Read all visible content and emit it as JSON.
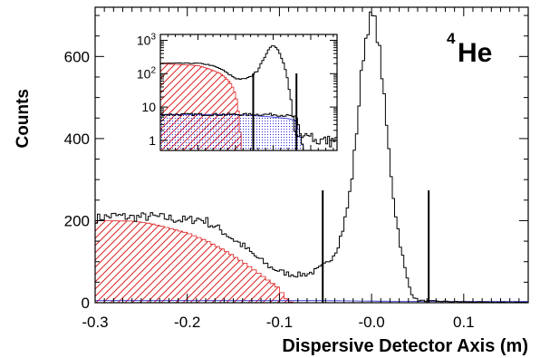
{
  "chart_data": {
    "type": "histogram",
    "annotation": {
      "superscript": "4",
      "text": "He"
    },
    "xlabel": "Dispersive Detector Axis (m)",
    "ylabel": "Counts",
    "xlim": [
      -0.3,
      0.17
    ],
    "ylim": [
      0,
      720
    ],
    "x_ticks": [
      -0.3,
      -0.2,
      -0.1,
      -0.0,
      0.1
    ],
    "x_tick_labels": [
      "-0.3",
      "-0.2",
      "-0.1",
      "-0.0",
      "0.1"
    ],
    "y_ticks": [
      0,
      200,
      400,
      600
    ],
    "y_tick_labels": [
      "0",
      "200",
      "400",
      "600"
    ],
    "cut_lines_x": [
      -0.053,
      0.062
    ],
    "series": [
      {
        "style": "black step line",
        "bin_width": 0.005,
        "points": [
          [
            -0.3,
            205
          ],
          [
            -0.28,
            212
          ],
          [
            -0.26,
            208
          ],
          [
            -0.24,
            210
          ],
          [
            -0.22,
            206
          ],
          [
            -0.2,
            200
          ],
          [
            -0.19,
            205
          ],
          [
            -0.18,
            200
          ],
          [
            -0.17,
            185
          ],
          [
            -0.16,
            172
          ],
          [
            -0.15,
            155
          ],
          [
            -0.14,
            140
          ],
          [
            -0.13,
            120
          ],
          [
            -0.12,
            103
          ],
          [
            -0.11,
            87
          ],
          [
            -0.1,
            77
          ],
          [
            -0.09,
            70
          ],
          [
            -0.08,
            68
          ],
          [
            -0.07,
            70
          ],
          [
            -0.06,
            78
          ],
          [
            -0.05,
            92
          ],
          [
            -0.04,
            122
          ],
          [
            -0.035,
            150
          ],
          [
            -0.03,
            190
          ],
          [
            -0.025,
            245
          ],
          [
            -0.02,
            330
          ],
          [
            -0.015,
            450
          ],
          [
            -0.01,
            585
          ],
          [
            -0.005,
            665
          ],
          [
            0.0,
            700
          ],
          [
            0.005,
            675
          ],
          [
            0.01,
            590
          ],
          [
            0.015,
            460
          ],
          [
            0.02,
            340
          ],
          [
            0.025,
            235
          ],
          [
            0.03,
            160
          ],
          [
            0.035,
            95
          ],
          [
            0.04,
            45
          ],
          [
            0.045,
            16
          ],
          [
            0.05,
            6
          ],
          [
            0.06,
            4
          ],
          [
            0.08,
            3
          ],
          [
            0.1,
            2
          ],
          [
            0.13,
            1
          ],
          [
            0.17,
            1
          ]
        ]
      },
      {
        "style": "red hatched fill",
        "bin_width": 0.005,
        "points": [
          [
            -0.3,
            200
          ],
          [
            -0.26,
            199
          ],
          [
            -0.24,
            193
          ],
          [
            -0.22,
            182
          ],
          [
            -0.2,
            170
          ],
          [
            -0.18,
            152
          ],
          [
            -0.16,
            128
          ],
          [
            -0.14,
            100
          ],
          [
            -0.12,
            68
          ],
          [
            -0.1,
            34
          ],
          [
            -0.095,
            15
          ],
          [
            -0.09,
            4
          ],
          [
            -0.085,
            0
          ]
        ]
      },
      {
        "style": "blue dotted fill",
        "bin_width": 0.005,
        "points": [
          [
            -0.3,
            5
          ],
          [
            -0.2,
            5
          ],
          [
            -0.1,
            5
          ],
          [
            -0.05,
            5
          ],
          [
            0.0,
            4
          ],
          [
            0.05,
            3
          ],
          [
            0.1,
            3
          ],
          [
            0.17,
            3
          ]
        ]
      }
    ],
    "inset": {
      "yscale": "log",
      "ylim": [
        0.5,
        1500
      ],
      "y_ticks": [
        1,
        10,
        100,
        1000
      ],
      "y_tick_labels": [
        {
          "base": "1",
          "exp": ""
        },
        {
          "base": "10",
          "exp": ""
        },
        {
          "base": "10",
          "exp": "2"
        },
        {
          "base": "10",
          "exp": "3"
        }
      ],
      "xlim": [
        -0.3,
        0.17
      ],
      "cut_lines_x": [
        -0.053,
        0.062
      ],
      "series": [
        {
          "style": "black step line",
          "points": [
            [
              -0.3,
              205
            ],
            [
              -0.2,
              205
            ],
            [
              -0.17,
              185
            ],
            [
              -0.14,
              140
            ],
            [
              -0.12,
              100
            ],
            [
              -0.1,
              72
            ],
            [
              -0.08,
              68
            ],
            [
              -0.06,
              80
            ],
            [
              -0.04,
              125
            ],
            [
              -0.02,
              330
            ],
            [
              -0.01,
              590
            ],
            [
              0.0,
              700
            ],
            [
              0.01,
              590
            ],
            [
              0.02,
              340
            ],
            [
              0.03,
              160
            ],
            [
              0.04,
              45
            ],
            [
              0.05,
              8
            ],
            [
              0.055,
              1.5
            ],
            [
              0.08,
              1
            ],
            [
              0.095,
              2
            ],
            [
              0.11,
              1
            ],
            [
              0.14,
              1
            ],
            [
              0.17,
              1
            ]
          ]
        },
        {
          "style": "red hatched fill",
          "points": [
            [
              -0.3,
              200
            ],
            [
              -0.2,
              175
            ],
            [
              -0.14,
              100
            ],
            [
              -0.11,
              45
            ],
            [
              -0.095,
              12
            ],
            [
              -0.09,
              3
            ],
            [
              -0.085,
              0.5
            ]
          ]
        },
        {
          "style": "blue dotted fill",
          "points": [
            [
              -0.3,
              6
            ],
            [
              -0.2,
              6
            ],
            [
              -0.1,
              6
            ],
            [
              -0.05,
              5.5
            ],
            [
              0.0,
              5
            ],
            [
              0.04,
              4.5
            ],
            [
              0.06,
              4
            ],
            [
              0.07,
              1.5
            ],
            [
              0.08,
              0.5
            ]
          ]
        },
        {
          "style": "black step line (lower tail)",
          "points": [
            [
              -0.3,
              6
            ],
            [
              -0.2,
              6
            ],
            [
              -0.1,
              6
            ],
            [
              -0.05,
              6
            ],
            [
              0.0,
              6
            ],
            [
              0.04,
              5.5
            ],
            [
              0.06,
              5
            ],
            [
              0.07,
              2
            ],
            [
              0.075,
              1
            ],
            [
              0.08,
              0.5
            ]
          ]
        }
      ]
    },
    "colors": {
      "frame": "#000000",
      "hatch": "#dd2222",
      "dots": "#2b2bd6",
      "background": "#ffffff"
    }
  }
}
